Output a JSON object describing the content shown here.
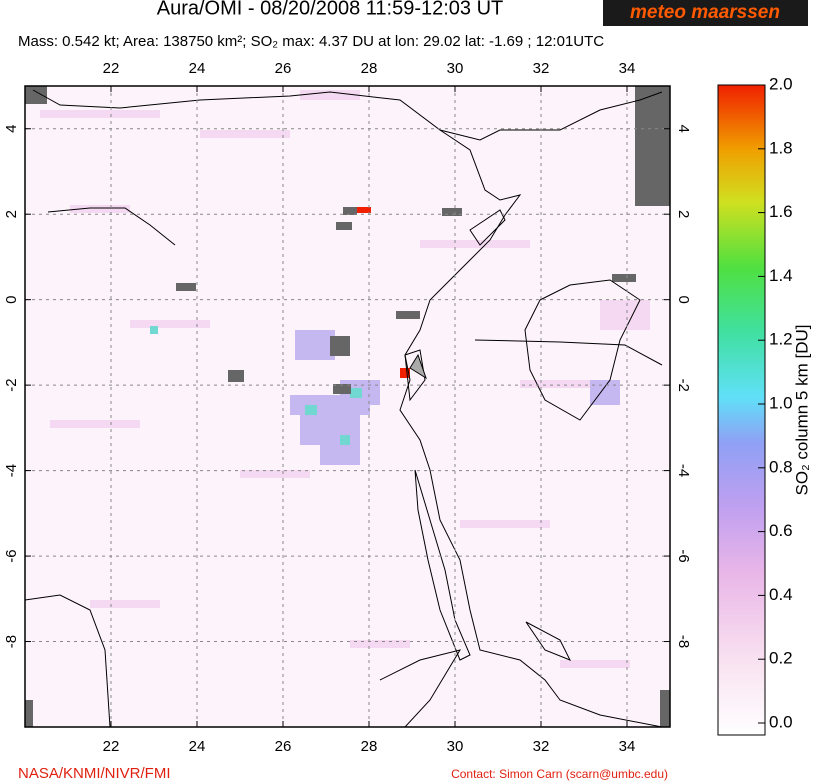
{
  "header": {
    "title": "Aura/OMI - 08/20/2008 11:59-12:03 UT",
    "subtitle": "Mass: 0.542 kt; Area: 138750 km²; SO₂ max: 4.37 DU at lon: 29.02 lat: -1.69 ; 12:01UTC",
    "logo": "meteo maarssen"
  },
  "map": {
    "xlim": [
      20,
      35
    ],
    "ylim": [
      -10,
      5
    ],
    "xticks": [
      22,
      24,
      26,
      28,
      30,
      32,
      34
    ],
    "yticks": [
      4,
      2,
      0,
      -2,
      -4,
      -6,
      -8
    ],
    "grid": true
  },
  "colorbar": {
    "label": "SO₂ column 5 km [DU]",
    "lim": [
      0,
      2
    ],
    "ticks": [
      {
        "value": 0,
        "label": "0.0"
      },
      {
        "value": 0.2,
        "label": "0.2"
      },
      {
        "value": 0.4,
        "label": "0.4"
      },
      {
        "value": 0.6,
        "label": "0.6"
      },
      {
        "value": 0.8,
        "label": "0.8"
      },
      {
        "value": 1,
        "label": "1.0"
      },
      {
        "value": 1.2,
        "label": "1.2"
      },
      {
        "value": 1.4,
        "label": "1.4"
      },
      {
        "value": 1.6,
        "label": "1.6"
      },
      {
        "value": 1.8,
        "label": "1.8"
      },
      {
        "value": 2,
        "label": "2.0"
      }
    ]
  },
  "footer": {
    "credit": "NASA/KNMI/NIVR/FMI",
    "contact": "Contact: Simon Carn (scarn@umbc.edu)"
  }
}
